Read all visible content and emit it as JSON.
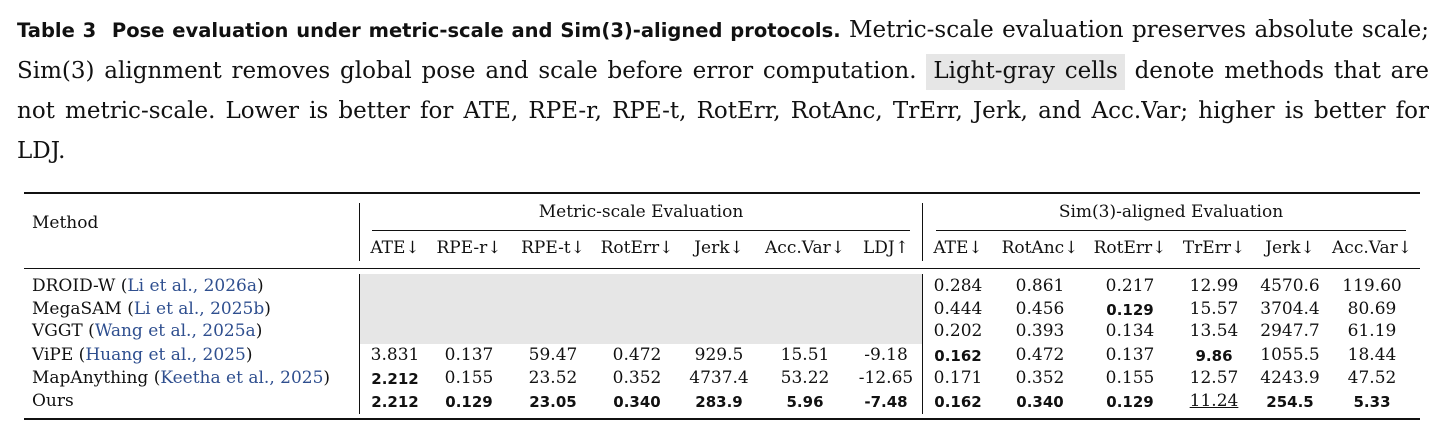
{
  "caption": {
    "label": "Table 3",
    "title": "Pose evaluation under metric-scale and Sim(3)-aligned protocols.",
    "text_1": "Metric-scale evaluation preserves absolute scale; Sim(3) alignment removes global pose and scale before error computation.",
    "gray_text": "Light-gray cells",
    "text_2": "denote methods that are not metric-scale. Lower is better for ATE, RPE-r, RPE-t, RotErr, RotAnc, TrErr, Jerk, and Acc.Var; higher is better for LDJ."
  },
  "table": {
    "method_header": "Method",
    "group_metric": "Metric-scale Evaluation",
    "group_sim3": "Sim(3)-aligned Evaluation",
    "metric_columns": [
      "ATE↓",
      "RPE-r↓",
      "RPE-t↓",
      "RotErr↓",
      "Jerk↓",
      "Acc.Var↓",
      "LDJ↑"
    ],
    "sim3_columns": [
      "ATE↓",
      "RotAnc↓",
      "RotErr↓",
      "TrErr↓",
      "Jerk↓",
      "Acc.Var↓"
    ],
    "rows": [
      {
        "method": "DROID-W",
        "cite": "Li et al., 2026a",
        "metric_scale": false,
        "metric": [],
        "sim3": [
          {
            "v": "0.284"
          },
          {
            "v": "0.861"
          },
          {
            "v": "0.217"
          },
          {
            "v": "12.99"
          },
          {
            "v": "4570.6"
          },
          {
            "v": "119.60"
          }
        ]
      },
      {
        "method": "MegaSAM",
        "cite": "Li et al., 2025b",
        "metric_scale": false,
        "metric": [],
        "sim3": [
          {
            "v": "0.444"
          },
          {
            "v": "0.456"
          },
          {
            "v": "0.129",
            "bold": true
          },
          {
            "v": "15.57"
          },
          {
            "v": "3704.4"
          },
          {
            "v": "80.69"
          }
        ]
      },
      {
        "method": "VGGT",
        "cite": "Wang et al., 2025a",
        "metric_scale": false,
        "metric": [],
        "sim3": [
          {
            "v": "0.202"
          },
          {
            "v": "0.393"
          },
          {
            "v": "0.134"
          },
          {
            "v": "13.54"
          },
          {
            "v": "2947.7"
          },
          {
            "v": "61.19"
          }
        ]
      },
      {
        "method": "ViPE",
        "cite": "Huang et al., 2025",
        "metric_scale": true,
        "metric": [
          {
            "v": "3.831"
          },
          {
            "v": "0.137"
          },
          {
            "v": "59.47"
          },
          {
            "v": "0.472"
          },
          {
            "v": "929.5"
          },
          {
            "v": "15.51"
          },
          {
            "v": "-9.18"
          }
        ],
        "sim3": [
          {
            "v": "0.162",
            "bold": true
          },
          {
            "v": "0.472"
          },
          {
            "v": "0.137"
          },
          {
            "v": "9.86",
            "bold": true
          },
          {
            "v": "1055.5"
          },
          {
            "v": "18.44"
          }
        ]
      },
      {
        "method": "MapAnything",
        "cite": "Keetha et al., 2025",
        "metric_scale": true,
        "metric": [
          {
            "v": "2.212",
            "bold": true
          },
          {
            "v": "0.155"
          },
          {
            "v": "23.52"
          },
          {
            "v": "0.352"
          },
          {
            "v": "4737.4"
          },
          {
            "v": "53.22"
          },
          {
            "v": "-12.65"
          }
        ],
        "sim3": [
          {
            "v": "0.171"
          },
          {
            "v": "0.352"
          },
          {
            "v": "0.155"
          },
          {
            "v": "12.57"
          },
          {
            "v": "4243.9"
          },
          {
            "v": "47.52"
          }
        ]
      },
      {
        "method": "Ours",
        "cite": "",
        "metric_scale": true,
        "metric": [
          {
            "v": "2.212",
            "bold": true
          },
          {
            "v": "0.129",
            "bold": true
          },
          {
            "v": "23.05",
            "bold": true
          },
          {
            "v": "0.340",
            "bold": true
          },
          {
            "v": "283.9",
            "bold": true
          },
          {
            "v": "5.96",
            "bold": true
          },
          {
            "v": "-7.48",
            "bold": true
          }
        ],
        "sim3": [
          {
            "v": "0.162",
            "bold": true
          },
          {
            "v": "0.340",
            "bold": true
          },
          {
            "v": "0.129",
            "bold": true
          },
          {
            "v": "11.24",
            "underline": true
          },
          {
            "v": "254.5",
            "bold": true
          },
          {
            "v": "5.33",
            "bold": true
          }
        ]
      }
    ]
  }
}
